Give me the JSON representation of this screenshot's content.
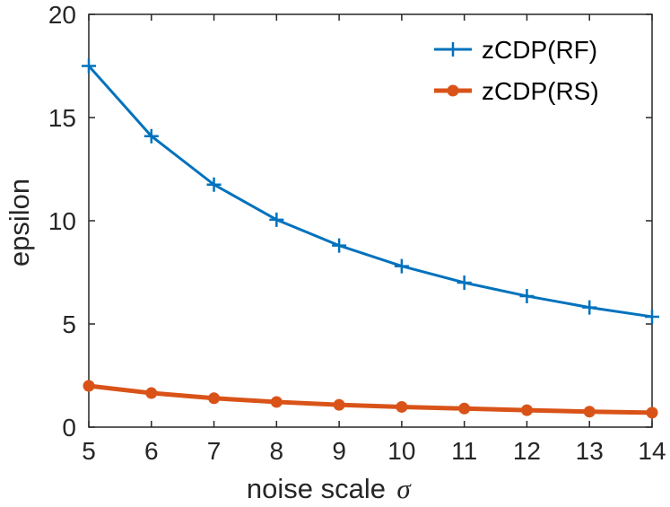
{
  "chart_data": {
    "type": "line",
    "title": "",
    "xlabel": "noise scale",
    "xlabel_symbol": "σ",
    "ylabel": "epsilon",
    "x": [
      5,
      6,
      7,
      8,
      9,
      10,
      11,
      12,
      13,
      14
    ],
    "xlim": [
      5,
      14
    ],
    "ylim": [
      0,
      20
    ],
    "xticks": [
      "5",
      "6",
      "7",
      "8",
      "9",
      "10",
      "11",
      "12",
      "13",
      "14"
    ],
    "yticks": [
      "0",
      "5",
      "10",
      "15",
      "20"
    ],
    "grid": false,
    "legend_position": "top-right",
    "series": [
      {
        "name": "zCDP(RF)",
        "marker": "plus",
        "color": "#0072BD",
        "values": [
          17.5,
          14.1,
          11.75,
          10.05,
          8.8,
          7.8,
          7.0,
          6.35,
          5.8,
          5.35
        ]
      },
      {
        "name": "zCDP(RS)",
        "marker": "circle",
        "color": "#D95319",
        "values": [
          2.0,
          1.65,
          1.4,
          1.22,
          1.08,
          0.98,
          0.9,
          0.82,
          0.75,
          0.7
        ]
      }
    ]
  }
}
